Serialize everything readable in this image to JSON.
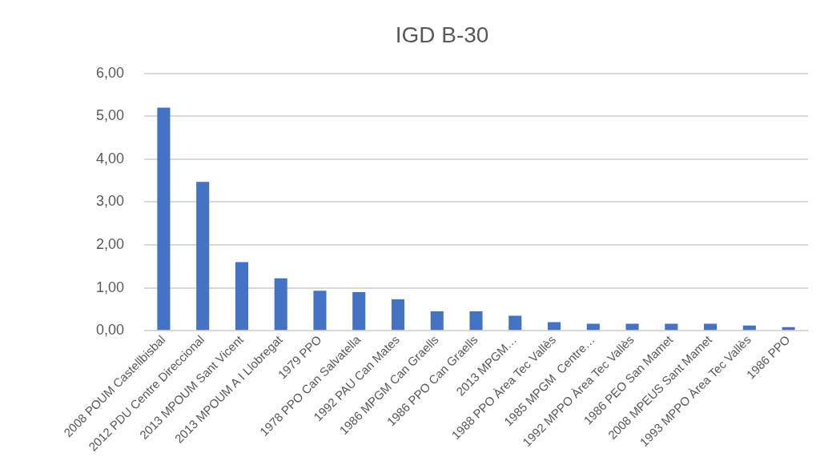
{
  "chart_data": {
    "type": "bar",
    "title": "IGD B-30",
    "categories": [
      "2008 POUM Castellbisbal",
      "2012 PDU Centre Direccional",
      "2013 MPOUM Sant Vicent",
      "2013 MPOUM A I Llobregat",
      "1979 PPO",
      "1978 PPO Can Salvatella",
      "1992 PAU Can Mates",
      "1986 MPGM Can Graells",
      "1986 PPO Can Graells",
      "2013 MPGM…",
      "1988 PPO Àrea Tec Vallès",
      "1985 MPGM  Centre…",
      "1992 MPPO Àrea Tec Vallès",
      "1986 PEO San Mamet",
      "2008 MPEUS Sant Mamet",
      "1993 MPPO Àrea Tec Vallès",
      "1986 PPO"
    ],
    "values": [
      5.2,
      3.47,
      1.6,
      1.22,
      0.93,
      0.9,
      0.73,
      0.45,
      0.45,
      0.35,
      0.2,
      0.16,
      0.16,
      0.16,
      0.16,
      0.12,
      0.08
    ],
    "color": "#4472c4",
    "ylim": [
      0,
      6
    ],
    "yticks": [
      {
        "value": 0,
        "label": "0,00"
      },
      {
        "value": 1,
        "label": "1,00"
      },
      {
        "value": 2,
        "label": "2,00"
      },
      {
        "value": 3,
        "label": "3,00"
      },
      {
        "value": 4,
        "label": "4,00"
      },
      {
        "value": 5,
        "label": "5,00"
      },
      {
        "value": 6,
        "label": "6,00"
      }
    ],
    "grid": "y",
    "legend": false
  }
}
